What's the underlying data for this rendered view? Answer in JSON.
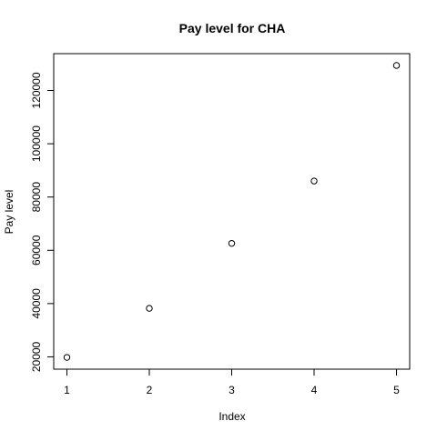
{
  "chart_data": {
    "type": "scatter",
    "title": "Pay level for  CHA",
    "xlabel": "Index",
    "ylabel": "Pay level",
    "x": [
      1,
      2,
      3,
      4,
      5
    ],
    "y": [
      19800,
      38200,
      62600,
      86000,
      129400
    ],
    "x_ticks": [
      "1",
      "2",
      "3",
      "4",
      "5"
    ],
    "y_ticks": [
      "20000",
      "40000",
      "60000",
      "80000",
      "100000",
      "120000"
    ],
    "xlim": [
      0.84,
      5.16
    ],
    "ylim": [
      15376,
      133824
    ],
    "grid": false,
    "marker": "open-circle",
    "point_color": "#000000"
  }
}
